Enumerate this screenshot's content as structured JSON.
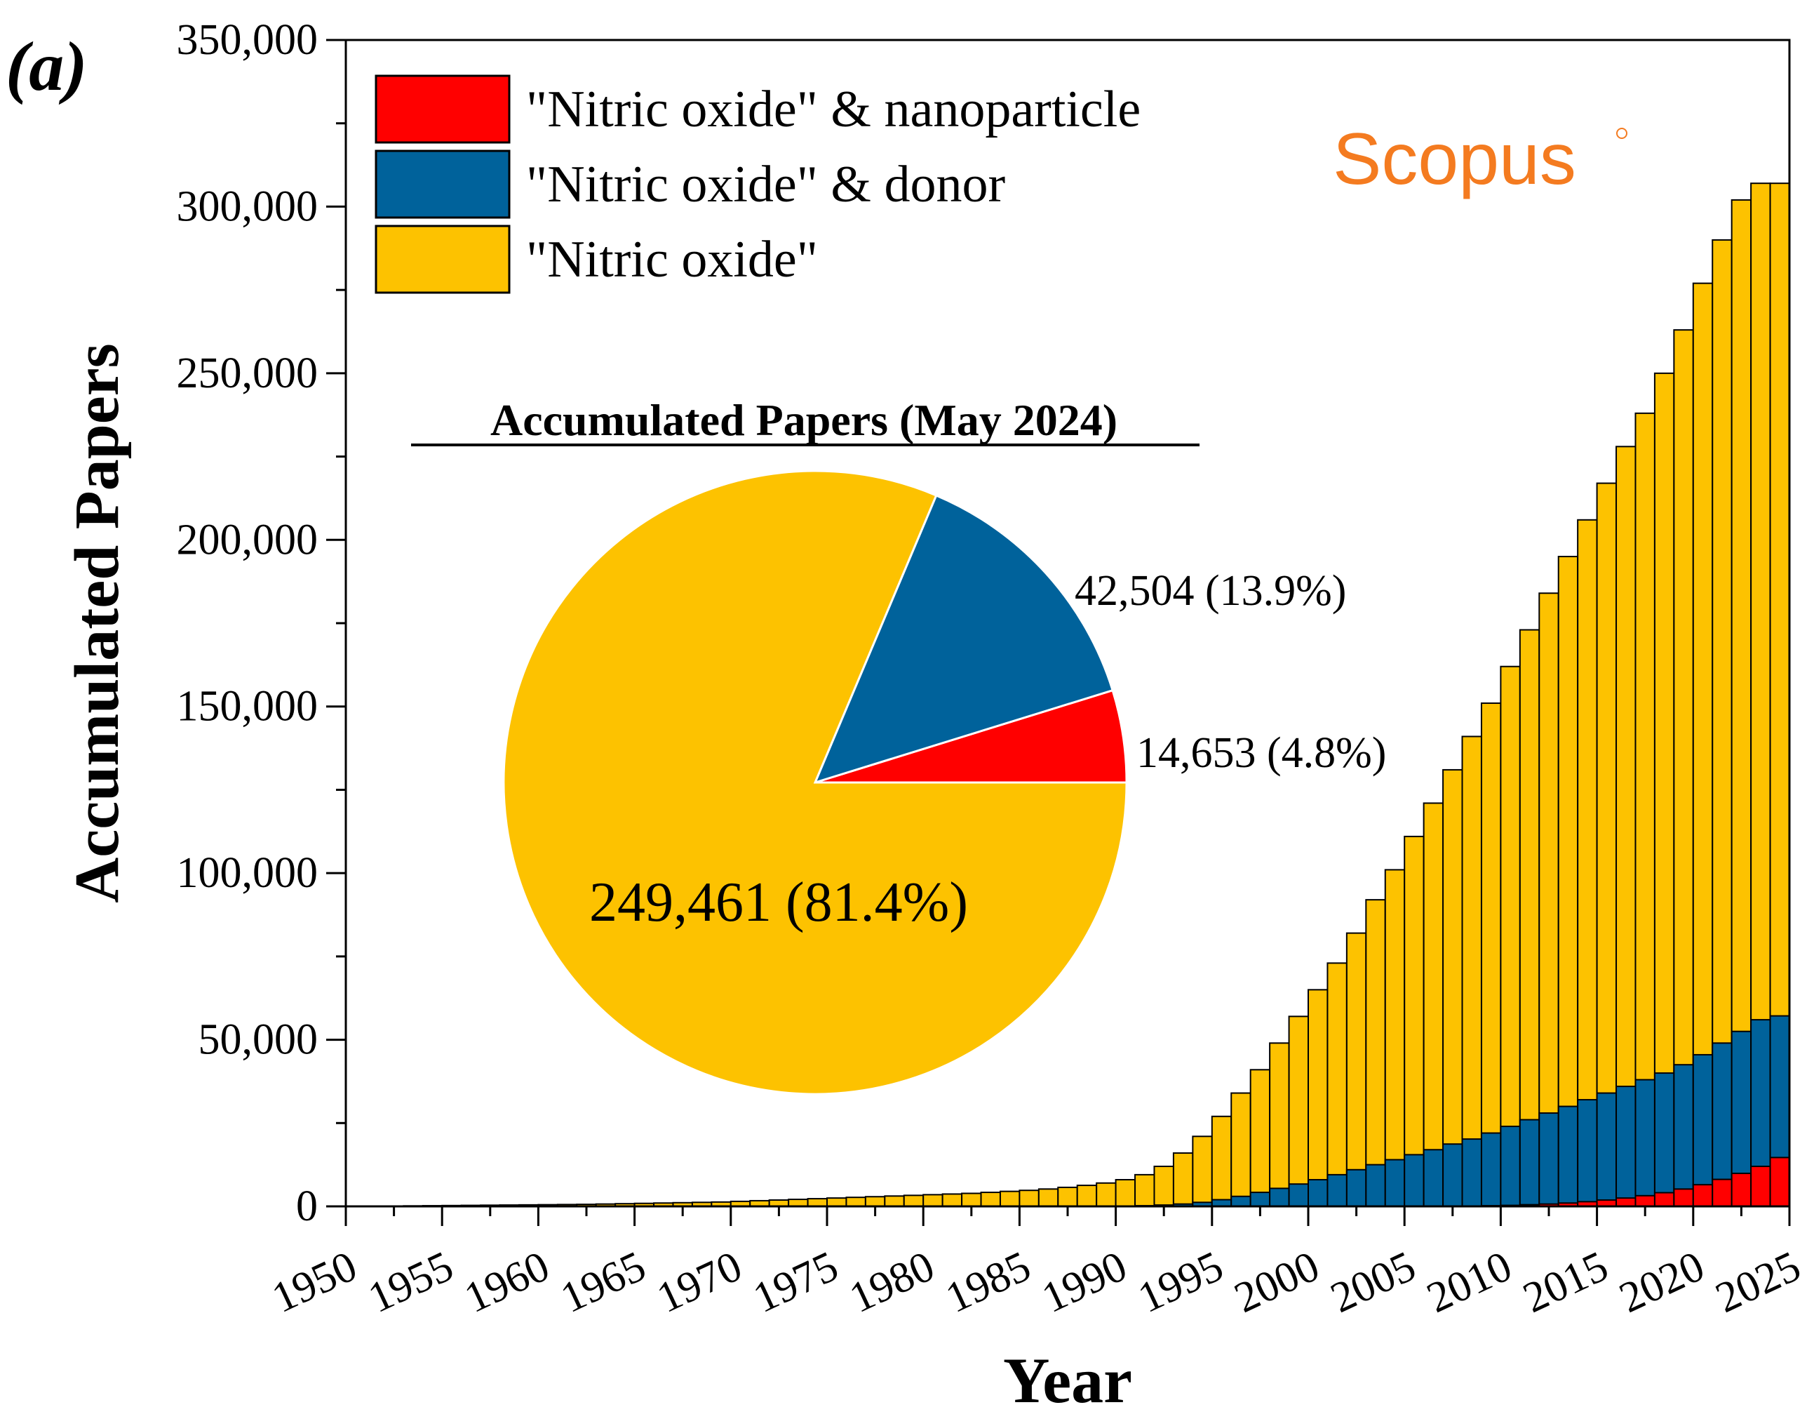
{
  "panel_label": "(a)",
  "watermark": "Scopus",
  "colors": {
    "nanoparticle": "#ff0000",
    "donor": "#00629b",
    "total": "#fdc200",
    "watermark": "#f47b20"
  },
  "chart_data": [
    {
      "type": "bar",
      "stacked": "overlay",
      "xlabel": "Year",
      "ylabel": "Accumulated Papers",
      "xlim": [
        1950,
        2025
      ],
      "ylim": [
        0,
        350000
      ],
      "x_ticks": [
        "1950",
        "1955",
        "1960",
        "1965",
        "1970",
        "1975",
        "1980",
        "1985",
        "1990",
        "1995",
        "2000",
        "2005",
        "2010",
        "2015",
        "2020",
        "2025"
      ],
      "y_ticks": [
        "0",
        "50,000",
        "100,000",
        "150,000",
        "200,000",
        "250,000",
        "300,000",
        "350,000"
      ],
      "legend": {
        "placement": "top-left",
        "entries": [
          "\"Nitric oxide\" & nanoparticle",
          "\"Nitric oxide\" & donor",
          "\"Nitric oxide\""
        ]
      },
      "x": [
        1951,
        1952,
        1953,
        1954,
        1955,
        1956,
        1957,
        1958,
        1959,
        1960,
        1961,
        1962,
        1963,
        1964,
        1965,
        1966,
        1967,
        1968,
        1969,
        1970,
        1971,
        1972,
        1973,
        1974,
        1975,
        1976,
        1977,
        1978,
        1979,
        1980,
        1981,
        1982,
        1983,
        1984,
        1985,
        1986,
        1987,
        1988,
        1989,
        1990,
        1991,
        1992,
        1993,
        1994,
        1995,
        1996,
        1997,
        1998,
        1999,
        2000,
        2001,
        2002,
        2003,
        2004,
        2005,
        2006,
        2007,
        2008,
        2009,
        2010,
        2011,
        2012,
        2013,
        2014,
        2015,
        2016,
        2017,
        2018,
        2019,
        2020,
        2021,
        2022,
        2023,
        2024,
        2025
      ],
      "series": [
        {
          "name": "\"Nitric oxide\"",
          "values": [
            50,
            80,
            100,
            150,
            200,
            250,
            300,
            350,
            400,
            450,
            500,
            550,
            600,
            700,
            800,
            900,
            1000,
            1100,
            1200,
            1300,
            1500,
            1700,
            1900,
            2100,
            2300,
            2500,
            2700,
            2900,
            3100,
            3300,
            3500,
            3700,
            3900,
            4200,
            4500,
            4800,
            5200,
            5700,
            6300,
            7000,
            8000,
            9500,
            12000,
            16000,
            21000,
            27000,
            34000,
            41000,
            49000,
            57000,
            65000,
            73000,
            82000,
            92000,
            101000,
            111000,
            121000,
            131000,
            141000,
            151000,
            162000,
            173000,
            184000,
            195000,
            206000,
            217000,
            228000,
            238000,
            250000,
            263000,
            277000,
            290000,
            302000,
            307000,
            307000
          ]
        },
        {
          "name": "\"Nitric oxide\" & donor",
          "values": [
            0,
            0,
            0,
            0,
            0,
            0,
            0,
            0,
            0,
            0,
            0,
            0,
            0,
            0,
            0,
            0,
            0,
            0,
            0,
            0,
            0,
            0,
            0,
            0,
            0,
            0,
            0,
            0,
            0,
            0,
            0,
            0,
            0,
            0,
            0,
            0,
            0,
            0,
            0,
            0,
            100,
            200,
            400,
            700,
            1200,
            2000,
            3000,
            4200,
            5400,
            6700,
            8000,
            9500,
            11000,
            12500,
            14000,
            15500,
            17000,
            18700,
            20200,
            22000,
            24000,
            26000,
            28000,
            30000,
            32000,
            34000,
            36000,
            38000,
            40000,
            42500,
            45500,
            49000,
            52500,
            56000,
            57157
          ]
        },
        {
          "name": "\"Nitric oxide\" & nanoparticle",
          "values": [
            0,
            0,
            0,
            0,
            0,
            0,
            0,
            0,
            0,
            0,
            0,
            0,
            0,
            0,
            0,
            0,
            0,
            0,
            0,
            0,
            0,
            0,
            0,
            0,
            0,
            0,
            0,
            0,
            0,
            0,
            0,
            0,
            0,
            0,
            0,
            0,
            0,
            0,
            0,
            0,
            0,
            0,
            0,
            0,
            0,
            0,
            0,
            0,
            0,
            0,
            0,
            0,
            0,
            0,
            0,
            0,
            0,
            0,
            100,
            200,
            300,
            500,
            700,
            1000,
            1400,
            1900,
            2500,
            3200,
            4100,
            5200,
            6500,
            8100,
            9900,
            12000,
            14653
          ]
        }
      ]
    },
    {
      "type": "pie",
      "title": "Accumulated Papers (May 2024)",
      "slices": [
        {
          "name": "\"Nitric oxide\" & nanoparticle",
          "value": 14653,
          "label": "14,653 (4.8%)"
        },
        {
          "name": "\"Nitric oxide\" & donor",
          "value": 42504,
          "label": "42,504 (13.9%)"
        },
        {
          "name": "\"Nitric oxide\"",
          "value": 249461,
          "label": "249,461 (81.4%)"
        }
      ]
    }
  ]
}
